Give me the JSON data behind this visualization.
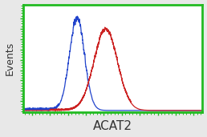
{
  "title": "",
  "xlabel": "ACAT2",
  "ylabel": "Events",
  "xlabel_fontsize": 11,
  "ylabel_fontsize": 9,
  "plot_bg_color": "#ffffff",
  "fig_bg_color": "#e8e8e8",
  "border_color": "#22bb22",
  "border_linewidth": 2.0,
  "blue_curve": {
    "mean": 0.3,
    "std": 0.042,
    "amplitude": 1.0,
    "color": "#2244cc",
    "linewidth": 0.9
  },
  "red_curve": {
    "mean": 0.46,
    "std": 0.065,
    "amplitude": 0.88,
    "color": "#cc2222",
    "linewidth": 0.9
  },
  "xlim": [
    0.0,
    1.0
  ],
  "ylim": [
    -0.02,
    1.15
  ],
  "figsize": [
    2.58,
    1.71
  ],
  "dpi": 100
}
